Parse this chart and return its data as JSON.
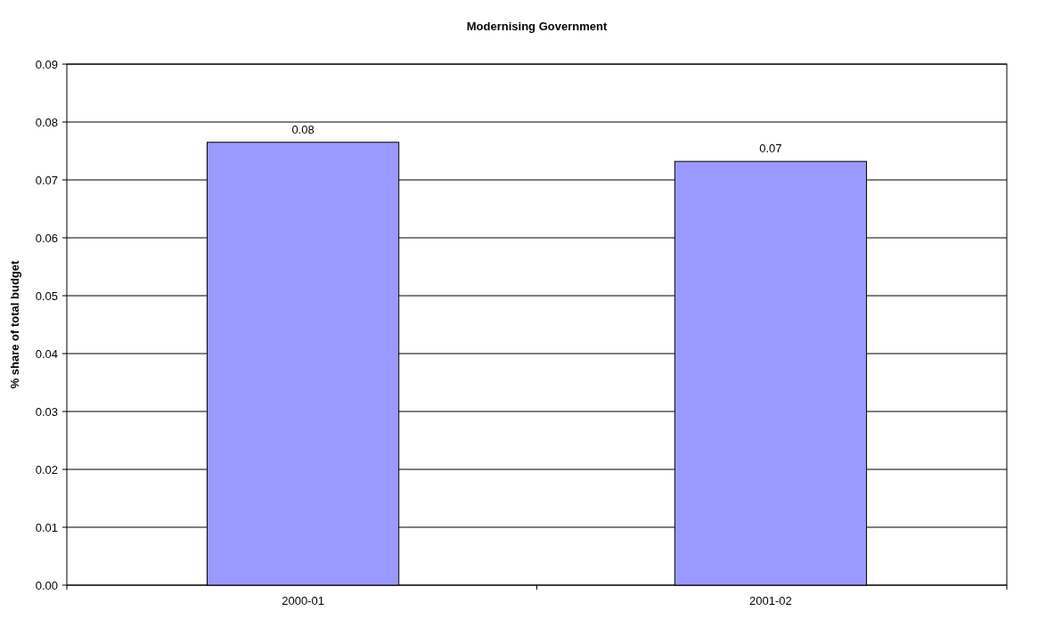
{
  "chart_data": {
    "type": "bar",
    "title": "Modernising Government",
    "ylabel": "% share of total budget",
    "categories": [
      "2000-01",
      "2001-02"
    ],
    "values": [
      0.0765,
      0.0732
    ],
    "value_labels": [
      "0.08",
      "0.07"
    ],
    "color": "#9999ff",
    "ylim": [
      0,
      0.09
    ],
    "yticks": [
      {
        "value": 0,
        "label": "0.00"
      },
      {
        "value": 0.01,
        "label": "0.01"
      },
      {
        "value": 0.02,
        "label": "0.02"
      },
      {
        "value": 0.03,
        "label": "0.03"
      },
      {
        "value": 0.04,
        "label": "0.04"
      },
      {
        "value": 0.05,
        "label": "0.05"
      },
      {
        "value": 0.06,
        "label": "0.06"
      },
      {
        "value": 0.07,
        "label": "0.07"
      },
      {
        "value": 0.08,
        "label": "0.08"
      },
      {
        "value": 0.09,
        "label": "0.09"
      }
    ],
    "grid": "y"
  }
}
